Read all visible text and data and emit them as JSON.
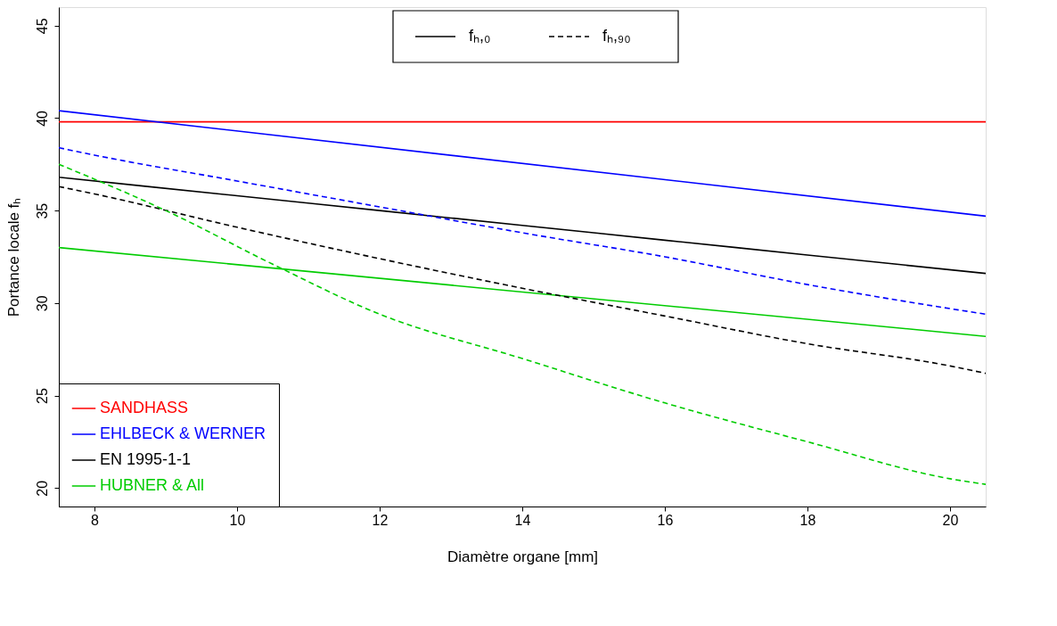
{
  "chart_data": {
    "type": "line",
    "xlabel": "Diamètre organe [mm]",
    "ylabel": "Portance locale   fₕ",
    "xlim": [
      7.5,
      20.5
    ],
    "ylim": [
      19,
      46
    ],
    "xticks": [
      8,
      10,
      12,
      14,
      16,
      18,
      20
    ],
    "yticks": [
      20,
      25,
      30,
      35,
      40,
      45
    ],
    "grid": false,
    "legend": "bottom left",
    "annotations": [
      "fₕ,₀",
      "fₕ,₉₀"
    ],
    "series": [
      {
        "name": "SANDHASS",
        "color": "#ff0000",
        "line_style": "solid",
        "x": [
          7.5,
          20.5
        ],
        "values": [
          39.8,
          39.8
        ]
      },
      {
        "name": "EHLBECK & WERNER",
        "color": "#0000ff",
        "line_style": "solid",
        "x": [
          7.5,
          20.5
        ],
        "values": [
          40.4,
          34.7
        ]
      },
      {
        "name": "EN 1995-1-1",
        "color": "#000000",
        "line_style": "solid",
        "x": [
          7.5,
          10,
          12,
          14,
          16,
          18,
          20.5
        ],
        "values": [
          36.8,
          35.8,
          35.0,
          34.2,
          33.4,
          32.6,
          31.6
        ]
      },
      {
        "name": "HUBNER & All",
        "color": "#00cc00",
        "line_style": "solid",
        "x": [
          7.5,
          20.5
        ],
        "values": [
          33.0,
          28.2
        ]
      },
      {
        "color": "#0000ff",
        "line_style": "dashed",
        "x": [
          7.5,
          8,
          10,
          12,
          14,
          16,
          18,
          20,
          20.5
        ],
        "values": [
          38.4,
          38.0,
          36.6,
          35.2,
          33.8,
          32.5,
          31.0,
          29.7,
          29.4
        ]
      },
      {
        "color": "#000000",
        "line_style": "dashed",
        "x": [
          7.5,
          8,
          10,
          12,
          14,
          16,
          18,
          20,
          20.5
        ],
        "values": [
          36.3,
          35.9,
          34.1,
          32.4,
          30.8,
          29.3,
          27.8,
          26.6,
          26.2
        ]
      },
      {
        "color": "#00cc00",
        "line_style": "dashed",
        "x": [
          7.5,
          8,
          9,
          10.5,
          12,
          14,
          16,
          18,
          20,
          20.5
        ],
        "values": [
          37.5,
          36.7,
          35.0,
          32.1,
          29.4,
          27.0,
          24.6,
          22.5,
          20.5,
          20.2
        ]
      }
    ]
  }
}
